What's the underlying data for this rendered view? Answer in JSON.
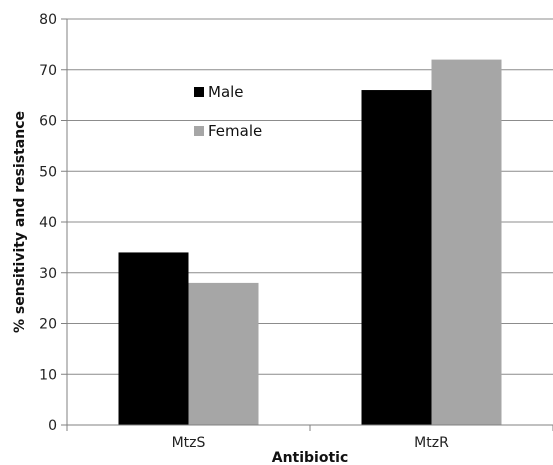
{
  "chart_data": {
    "type": "bar",
    "title": "",
    "xlabel": "Antibiotic",
    "ylabel": "% sensitivity and resistance",
    "categories": [
      "MtzS",
      "MtzR"
    ],
    "series": [
      {
        "name": "Male",
        "values": [
          34,
          66
        ],
        "color": "#000000"
      },
      {
        "name": "Female",
        "values": [
          28,
          72
        ],
        "color": "#a6a6a6"
      }
    ],
    "ylim": [
      0,
      80
    ],
    "yticks": [
      0,
      10,
      20,
      30,
      40,
      50,
      60,
      70,
      80
    ],
    "grid": true,
    "legend_position": "top-left inside plot"
  }
}
